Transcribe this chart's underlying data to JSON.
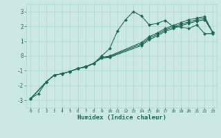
{
  "xlabel": "Humidex (Indice chaleur)",
  "bg_color": "#cce8e4",
  "grid_color": "#aad4cc",
  "line_color": "#1a6655",
  "xlim": [
    -0.5,
    23.5
  ],
  "ylim": [
    -3.5,
    3.5
  ],
  "xticks": [
    0,
    1,
    2,
    3,
    4,
    5,
    6,
    7,
    8,
    9,
    10,
    11,
    12,
    13,
    14,
    15,
    16,
    17,
    18,
    19,
    20,
    21,
    22,
    23
  ],
  "yticks": [
    -3,
    -2,
    -1,
    0,
    1,
    2,
    3
  ],
  "line1_x": [
    0,
    1,
    2,
    3,
    4,
    5,
    6,
    7,
    8,
    9,
    10,
    11,
    12,
    13,
    14,
    15,
    16,
    17,
    18,
    19,
    20,
    21,
    22,
    23
  ],
  "line1_y": [
    -2.9,
    -2.55,
    -1.75,
    -1.3,
    -1.2,
    -1.05,
    -0.85,
    -0.7,
    -0.5,
    0.0,
    0.5,
    1.7,
    2.45,
    3.0,
    2.7,
    2.1,
    2.2,
    2.4,
    2.0,
    1.95,
    1.85,
    2.1,
    1.5,
    1.5
  ],
  "line2_x": [
    0,
    2,
    3,
    4,
    5,
    6,
    7,
    8,
    9,
    10,
    14,
    15,
    16,
    17,
    18,
    19,
    20,
    21,
    22,
    23
  ],
  "line2_y": [
    -2.9,
    -1.75,
    -1.3,
    -1.2,
    -1.05,
    -0.85,
    -0.75,
    -0.5,
    -0.1,
    0.0,
    0.9,
    1.3,
    1.55,
    1.85,
    2.05,
    2.25,
    2.45,
    2.55,
    2.65,
    1.6
  ],
  "line3_x": [
    0,
    2,
    3,
    4,
    5,
    6,
    7,
    8,
    9,
    10,
    14,
    15,
    16,
    17,
    18,
    19,
    20,
    21,
    22,
    23
  ],
  "line3_y": [
    -2.9,
    -1.75,
    -1.3,
    -1.2,
    -1.05,
    -0.85,
    -0.75,
    -0.5,
    -0.1,
    -0.05,
    0.8,
    1.2,
    1.45,
    1.75,
    1.95,
    2.15,
    2.3,
    2.45,
    2.55,
    1.6
  ],
  "line4_x": [
    0,
    2,
    3,
    4,
    5,
    6,
    7,
    8,
    9,
    10,
    14,
    15,
    16,
    17,
    18,
    19,
    20,
    21,
    22,
    23
  ],
  "line4_y": [
    -2.9,
    -1.75,
    -1.3,
    -1.2,
    -1.05,
    -0.85,
    -0.75,
    -0.5,
    -0.15,
    -0.1,
    0.7,
    1.1,
    1.35,
    1.65,
    1.85,
    2.05,
    2.2,
    2.35,
    2.45,
    1.6
  ]
}
